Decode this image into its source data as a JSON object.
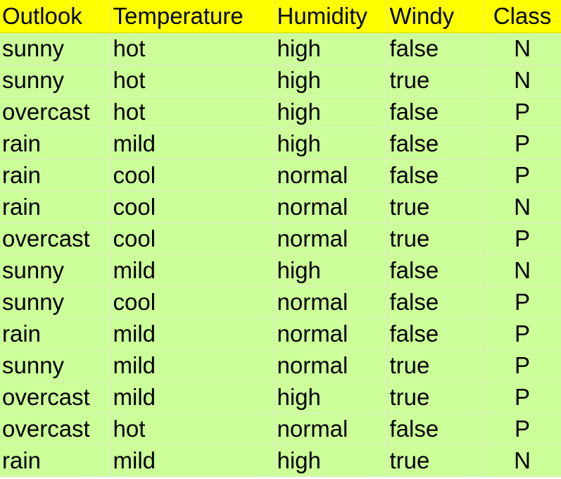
{
  "table": {
    "headers": [
      "Outlook",
      "Temperature",
      "Humidity",
      "Windy",
      "Class"
    ],
    "rows": [
      [
        "sunny",
        "hot",
        "high",
        "false",
        "N"
      ],
      [
        "sunny",
        "hot",
        "high",
        "true",
        "N"
      ],
      [
        "overcast",
        "hot",
        "high",
        "false",
        "P"
      ],
      [
        "rain",
        "mild",
        "high",
        "false",
        "P"
      ],
      [
        "rain",
        "cool",
        "normal",
        "false",
        "P"
      ],
      [
        "rain",
        "cool",
        "normal",
        "true",
        "N"
      ],
      [
        "overcast",
        "cool",
        "normal",
        "true",
        "P"
      ],
      [
        "sunny",
        "mild",
        "high",
        "false",
        "N"
      ],
      [
        "sunny",
        "cool",
        "normal",
        "false",
        "P"
      ],
      [
        "rain",
        "mild",
        "normal",
        "false",
        "P"
      ],
      [
        "sunny",
        "mild",
        "normal",
        "true",
        "P"
      ],
      [
        "overcast",
        "mild",
        "high",
        "true",
        "P"
      ],
      [
        "overcast",
        "hot",
        "normal",
        "false",
        "P"
      ],
      [
        "rain",
        "mild",
        "high",
        "true",
        "N"
      ]
    ]
  },
  "colors": {
    "header_background": "#ffff00",
    "row_background": "#ccff99",
    "text": "#000000"
  }
}
